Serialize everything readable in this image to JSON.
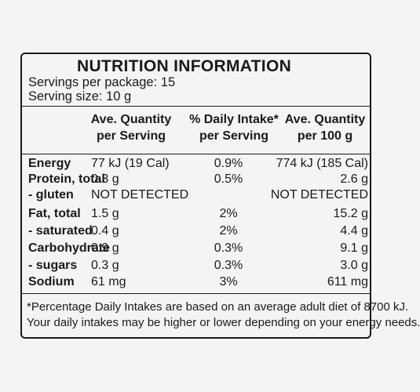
{
  "title": "NUTRITION INFORMATION",
  "servings_per_package": "Servings per package: 15",
  "serving_size": "Serving size: 10 g",
  "columns": [
    [
      "Ave. Quantity",
      "per Serving"
    ],
    [
      "% Daily Intake*",
      "per Serving"
    ],
    [
      "Ave. Quantity",
      "per 100 g"
    ]
  ],
  "rows": [
    {
      "label": "Energy",
      "per_serving": "77 kJ (19 Cal)",
      "daily_intake": "0.9%",
      "per_100g": "774 kJ (185 Cal)"
    },
    {
      "label": "Protein, total",
      "per_serving": "0.3 g",
      "daily_intake": "0.5%",
      "per_100g": "2.6 g"
    },
    {
      "label": "- gluten",
      "per_serving": "NOT DETECTED",
      "daily_intake": "",
      "per_100g": "NOT DETECTED"
    },
    {
      "label": "Fat, total",
      "per_serving": "1.5 g",
      "daily_intake": "2%",
      "per_100g": "15.2 g"
    },
    {
      "label": "- saturated",
      "per_serving": "0.4 g",
      "daily_intake": "2%",
      "per_100g": "4.4 g"
    },
    {
      "label": "Carbohydrate",
      "per_serving": "0.9 g",
      "daily_intake": "0.3%",
      "per_100g": "9.1 g"
    },
    {
      "label": "- sugars",
      "per_serving": "0.3 g",
      "daily_intake": "0.3%",
      "per_100g": "3.0 g"
    },
    {
      "label": "Sodium",
      "per_serving": "61 mg",
      "daily_intake": "3%",
      "per_100g": "611 mg"
    }
  ],
  "footnote": [
    "*Percentage Daily Intakes are based on an average adult diet of 8700 kJ.",
    "Your daily intakes may be higher or lower depending on your energy needs."
  ]
}
